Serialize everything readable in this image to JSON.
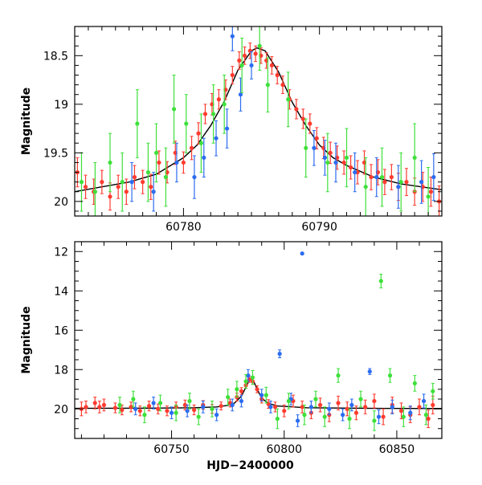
{
  "chart_data": [
    {
      "type": "scatter",
      "title": "",
      "xlabel": "",
      "ylabel": "Magnitude",
      "xlim": [
        60772,
        60799
      ],
      "ylim": [
        20.15,
        18.2
      ],
      "y_inverted": true,
      "grid": false,
      "legend": "none",
      "xticks": [
        60780,
        60790
      ],
      "xtick_labels": [
        "60780",
        "60790"
      ],
      "yticks": [
        18.5,
        19,
        19.5,
        20
      ],
      "ytick_labels": [
        "18.5",
        "19",
        "19.5",
        "20"
      ],
      "model_curve": {
        "color": "#000000",
        "x": [
          60772,
          60774,
          60776,
          60778,
          60780,
          60781,
          60782,
          60783,
          60784,
          60785,
          60785.4,
          60786,
          60787,
          60788,
          60789,
          60790,
          60791,
          60792,
          60794,
          60796,
          60799
        ],
        "y": [
          19.9,
          19.85,
          19.8,
          19.72,
          19.55,
          19.42,
          19.22,
          18.97,
          18.65,
          18.45,
          18.42,
          18.45,
          18.67,
          18.98,
          19.22,
          19.42,
          19.55,
          19.63,
          19.75,
          19.82,
          19.88
        ]
      },
      "series": [
        {
          "color": "#ff3b2f",
          "x": [
            60772.2,
            60772.8,
            60773.4,
            60774.0,
            60774.6,
            60775.2,
            60775.8,
            60776.4,
            60777.0,
            60777.6,
            60778.2,
            60778.8,
            60779.4,
            60780.0,
            60780.6,
            60781.1,
            60781.6,
            60782.1,
            60782.6,
            60783.1,
            60783.6,
            60784.1,
            60784.5,
            60784.9,
            60785.3,
            60785.7,
            60786.1,
            60786.5,
            60786.9,
            60787.3,
            60787.8,
            60788.3,
            60788.8,
            60789.3,
            60789.8,
            60790.3,
            60790.8,
            60791.3,
            60791.8,
            60792.3,
            60792.8,
            60793.3,
            60793.8,
            60794.3,
            60794.8,
            60795.3,
            60795.8,
            60796.4,
            60797.0,
            60797.6,
            60798.2,
            60798.8
          ],
          "y": [
            19.7,
            19.85,
            19.9,
            19.8,
            19.95,
            19.85,
            19.9,
            19.75,
            19.8,
            19.85,
            19.6,
            19.7,
            19.5,
            19.6,
            19.45,
            19.3,
            19.1,
            19.0,
            18.95,
            18.85,
            18.7,
            18.55,
            18.5,
            18.45,
            18.48,
            18.5,
            18.55,
            18.6,
            18.7,
            18.8,
            18.95,
            19.05,
            19.15,
            19.2,
            19.35,
            19.45,
            19.5,
            19.55,
            19.6,
            19.65,
            19.7,
            19.6,
            19.75,
            19.7,
            19.8,
            19.75,
            19.85,
            19.8,
            19.9,
            19.85,
            19.9,
            20.0
          ],
          "err": [
            0.15,
            0.12,
            0.13,
            0.12,
            0.14,
            0.12,
            0.13,
            0.12,
            0.12,
            0.13,
            0.12,
            0.11,
            0.12,
            0.11,
            0.12,
            0.11,
            0.1,
            0.11,
            0.1,
            0.1,
            0.09,
            0.09,
            0.09,
            0.08,
            0.08,
            0.08,
            0.08,
            0.09,
            0.09,
            0.09,
            0.1,
            0.1,
            0.1,
            0.1,
            0.11,
            0.11,
            0.11,
            0.12,
            0.12,
            0.12,
            0.12,
            0.12,
            0.13,
            0.13,
            0.13,
            0.13,
            0.14,
            0.14,
            0.14,
            0.15,
            0.15,
            0.16
          ]
        },
        {
          "color": "#2b6cf0",
          "x": [
            60776.2,
            60777.8,
            60779.5,
            60780.8,
            60781.5,
            60782.4,
            60783.2,
            60783.6,
            60784.2,
            60785.0,
            60789.6,
            60790.4,
            60791.2,
            60792.6,
            60794.2,
            60795.8,
            60797.5,
            60798.4
          ],
          "y": [
            19.8,
            19.9,
            19.6,
            19.75,
            19.55,
            19.35,
            19.25,
            18.3,
            18.9,
            18.6,
            19.45,
            19.55,
            19.6,
            19.7,
            19.75,
            19.85,
            19.8,
            19.75
          ],
          "err": [
            0.2,
            0.2,
            0.2,
            0.22,
            0.2,
            0.18,
            0.2,
            0.15,
            0.17,
            0.14,
            0.18,
            0.18,
            0.2,
            0.2,
            0.2,
            0.22,
            0.22,
            0.24
          ]
        },
        {
          "color": "#3ee03a",
          "x": [
            60772.5,
            60773.5,
            60774.6,
            60775.5,
            60776.6,
            60777.4,
            60778.0,
            60778.7,
            60779.3,
            60780.2,
            60781.3,
            60782.2,
            60783.0,
            60784.3,
            60785.6,
            60786.2,
            60787.7,
            60789.0,
            60790.6,
            60792.0,
            60793.4,
            60794.6,
            60796.0,
            60797.0,
            60798.0
          ],
          "y": [
            19.8,
            19.9,
            19.6,
            19.8,
            19.2,
            19.7,
            19.5,
            19.75,
            19.05,
            19.2,
            19.4,
            19.1,
            19.0,
            18.6,
            18.4,
            18.8,
            18.95,
            19.45,
            19.6,
            19.55,
            19.85,
            19.75,
            19.8,
            19.55,
            19.95
          ],
          "err": [
            0.3,
            0.3,
            0.3,
            0.3,
            0.35,
            0.3,
            0.3,
            0.3,
            0.35,
            0.3,
            0.3,
            0.3,
            0.3,
            0.28,
            0.25,
            0.28,
            0.28,
            0.3,
            0.3,
            0.3,
            0.3,
            0.3,
            0.3,
            0.35,
            0.3
          ]
        }
      ]
    },
    {
      "type": "scatter",
      "title": "",
      "xlabel": "HJD−2400000",
      "ylabel": "Magnitude",
      "xlim": [
        60707,
        60870
      ],
      "ylim": [
        21.5,
        11.5
      ],
      "y_inverted": true,
      "grid": false,
      "legend": "none",
      "xticks": [
        60750,
        60800,
        60850
      ],
      "xtick_labels": [
        "60750",
        "60800",
        "60850"
      ],
      "yticks": [
        12,
        14,
        16,
        18,
        20
      ],
      "ytick_labels": [
        "12",
        "14",
        "16",
        "18",
        "20"
      ],
      "model_curve": {
        "color": "#000000",
        "x": [
          60707,
          60740,
          60760,
          60770,
          60775,
          60778,
          60781,
          60783,
          60784.5,
          60785.4,
          60786.5,
          60788,
          60790,
          60793,
          60797,
          60810,
          60840,
          60870
        ],
        "y": [
          19.97,
          19.96,
          19.94,
          19.9,
          19.82,
          19.7,
          19.35,
          18.9,
          18.55,
          18.42,
          18.6,
          19.0,
          19.45,
          19.72,
          19.85,
          19.94,
          19.97,
          19.98
        ],
        "color_width": 1
      },
      "series": [
        {
          "color": "#ff3b2f",
          "x": [
            60710,
            60712,
            60716,
            60718,
            60720,
            60725,
            60728,
            60732,
            60736,
            60740,
            60744,
            60748,
            60752,
            60756,
            60760,
            60764,
            60768,
            60772,
            60776,
            60779,
            60781,
            60783,
            60784.5,
            60786,
            60788,
            60790,
            60793,
            60796,
            60800,
            60804,
            60808,
            60812,
            60816,
            60820,
            60824,
            60828,
            60832,
            60836,
            60840,
            60844,
            60848,
            60852,
            60856,
            60860,
            60864,
            60866
          ],
          "y": [
            20.0,
            19.9,
            19.7,
            19.9,
            19.8,
            19.95,
            20.05,
            19.9,
            20.1,
            19.85,
            20.0,
            20.1,
            19.9,
            19.8,
            20.05,
            19.8,
            20.0,
            19.85,
            19.7,
            19.4,
            19.1,
            18.8,
            18.5,
            18.6,
            19.0,
            19.5,
            19.75,
            19.9,
            20.1,
            19.6,
            19.9,
            20.2,
            19.8,
            20.3,
            19.7,
            20.0,
            20.2,
            19.9,
            19.6,
            20.4,
            19.8,
            20.1,
            20.3,
            19.9,
            20.5,
            19.8
          ],
          "err": [
            0.35,
            0.3,
            0.3,
            0.3,
            0.3,
            0.25,
            0.25,
            0.25,
            0.25,
            0.25,
            0.25,
            0.25,
            0.25,
            0.25,
            0.25,
            0.22,
            0.22,
            0.2,
            0.2,
            0.2,
            0.18,
            0.15,
            0.15,
            0.15,
            0.18,
            0.2,
            0.22,
            0.25,
            0.3,
            0.3,
            0.3,
            0.3,
            0.35,
            0.35,
            0.35,
            0.35,
            0.35,
            0.35,
            0.35,
            0.4,
            0.4,
            0.4,
            0.4,
            0.4,
            0.45,
            0.45
          ]
        },
        {
          "color": "#2b6cf0",
          "x": [
            60734,
            60742,
            60750,
            60757,
            60764,
            60770,
            60777,
            60781,
            60784,
            60790,
            60794,
            60798,
            60803,
            60806,
            60808,
            60812,
            60820,
            60826,
            60830,
            60838,
            60842,
            60848,
            60856,
            60862
          ],
          "y": [
            20.0,
            19.7,
            20.2,
            20.1,
            19.9,
            20.3,
            19.8,
            19.6,
            18.3,
            19.3,
            19.9,
            17.2,
            19.5,
            20.6,
            12.1,
            19.9,
            20.0,
            20.3,
            19.8,
            18.1,
            20.4,
            19.9,
            20.2,
            19.6
          ],
          "err": [
            0.3,
            0.3,
            0.3,
            0.3,
            0.3,
            0.3,
            0.3,
            0.3,
            0.3,
            0.3,
            0.3,
            0.2,
            0.3,
            0.3,
            0.06,
            0.3,
            0.3,
            0.3,
            0.3,
            0.15,
            0.35,
            0.35,
            0.35,
            0.35
          ]
        },
        {
          "color": "#3ee03a",
          "x": [
            60727,
            60733,
            60738,
            60745,
            60752,
            60758,
            60762,
            60768,
            60775,
            60779,
            60783,
            60786,
            60792,
            60797,
            60802,
            60809,
            60814,
            60818,
            60824,
            60829,
            60834,
            60840,
            60843,
            60847,
            60853,
            60858,
            60863,
            60866
          ],
          "y": [
            19.8,
            19.5,
            20.3,
            19.7,
            20.2,
            19.6,
            20.4,
            20.0,
            19.4,
            19.0,
            18.6,
            18.4,
            19.3,
            20.5,
            19.6,
            20.3,
            19.5,
            20.4,
            18.3,
            20.5,
            19.5,
            20.6,
            13.5,
            18.3,
            20.4,
            18.7,
            20.3,
            19.1
          ],
          "err": [
            0.4,
            0.4,
            0.4,
            0.4,
            0.4,
            0.4,
            0.4,
            0.4,
            0.4,
            0.4,
            0.35,
            0.35,
            0.4,
            0.5,
            0.4,
            0.5,
            0.4,
            0.5,
            0.35,
            0.5,
            0.4,
            0.5,
            0.35,
            0.35,
            0.5,
            0.4,
            0.5,
            0.4
          ]
        }
      ]
    }
  ]
}
